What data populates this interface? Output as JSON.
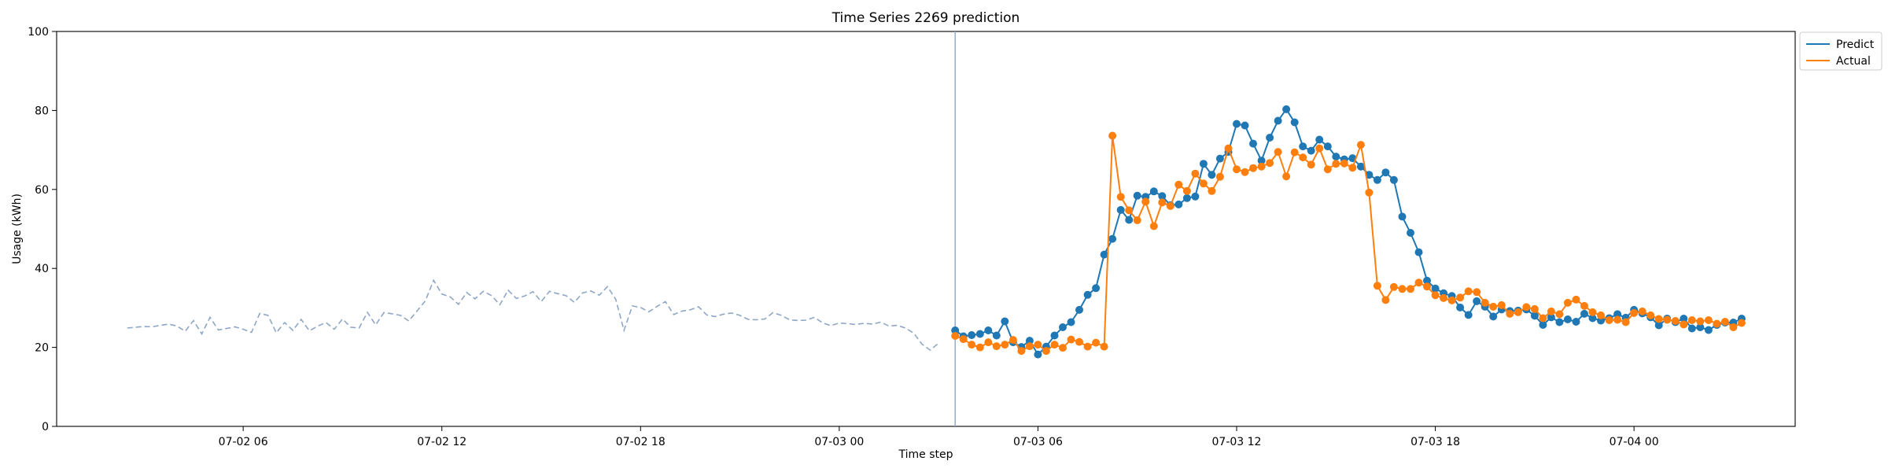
{
  "chart_data": {
    "type": "line",
    "title": "Time Series 2269 prediction",
    "xlabel": "Time step",
    "ylabel": "Usage (kWh)",
    "ylim": [
      0,
      100
    ],
    "yticks": [
      "0",
      "20",
      "40",
      "60",
      "80",
      "100"
    ],
    "xlim": [
      "2024-07-02 00:22",
      "2024-07-04 04:52"
    ],
    "xticks": [
      {
        "label": "07-02 06",
        "x": "2024-07-02 06:00"
      },
      {
        "label": "07-02 12",
        "x": "2024-07-02 12:00"
      },
      {
        "label": "07-02 18",
        "x": "2024-07-02 18:00"
      },
      {
        "label": "07-03 00",
        "x": "2024-07-03 00:00"
      },
      {
        "label": "07-03 06",
        "x": "2024-07-03 06:00"
      },
      {
        "label": "07-03 12",
        "x": "2024-07-03 12:00"
      },
      {
        "label": "07-03 18",
        "x": "2024-07-03 18:00"
      },
      {
        "label": "07-04 00",
        "x": "2024-07-04 00:00"
      }
    ],
    "split_line": "2024-07-03 03:30",
    "legend": {
      "placement": "upper-right-outside"
    },
    "colors": {
      "predict": "#1f77b4",
      "actual": "#ff7f0e",
      "history": "#8fa7c6",
      "split": "#8fa7c6"
    },
    "history": {
      "start": "2024-07-02 02:30",
      "step_minutes": 15,
      "values": [
        24.9,
        25.1,
        25.3,
        25.2,
        25.6,
        25.9,
        25.4,
        24.1,
        26.8,
        23.4,
        27.6,
        24.4,
        24.8,
        25.2,
        24.6,
        23.8,
        28.6,
        28.1,
        23.7,
        26.3,
        24.3,
        27.1,
        24.2,
        25.4,
        26.3,
        24.6,
        27.2,
        25.1,
        24.9,
        28.9,
        25.7,
        28.8,
        28.5,
        28.1,
        26.7,
        29.2,
        31.8,
        37.0,
        33.5,
        32.8,
        30.9,
        33.9,
        32.3,
        34.2,
        33.1,
        30.8,
        34.5,
        32.4,
        33.0,
        34.1,
        31.6,
        34.2,
        33.6,
        33.1,
        31.4,
        33.8,
        34.3,
        33.2,
        35.4,
        32.2,
        24.3,
        30.5,
        30.1,
        29.0,
        30.4,
        31.6,
        28.3,
        29.2,
        29.5,
        30.3,
        28.2,
        27.8,
        28.4,
        28.7,
        28.1,
        27.1,
        27.0,
        27.2,
        28.8,
        28.1,
        27.0,
        26.8,
        26.9,
        27.6,
        26.2,
        25.5,
        26.2,
        26.0,
        25.8,
        26.1,
        25.9,
        26.4,
        25.4,
        25.6,
        24.9,
        23.6,
        20.8,
        19.3,
        21.1
      ]
    },
    "series": [
      {
        "name": "Predict",
        "start": "2024-07-03 03:30",
        "step_minutes": 15,
        "values": [
          24.3,
          22.8,
          23.1,
          23.4,
          24.3,
          23.0,
          26.6,
          21.3,
          20.1,
          21.7,
          18.2,
          20.2,
          23.0,
          25.1,
          26.4,
          29.5,
          33.3,
          35.0,
          43.5,
          47.5,
          54.8,
          52.3,
          58.4,
          58.1,
          59.5,
          58.3,
          56.0,
          56.2,
          57.8,
          58.2,
          66.5,
          63.7,
          67.8,
          69.5,
          76.6,
          76.2,
          71.6,
          67.3,
          73.1,
          77.4,
          80.3,
          77.0,
          70.9,
          69.8,
          72.6,
          70.9,
          68.3,
          67.6,
          67.9,
          65.8,
          63.7,
          62.4,
          64.3,
          62.4,
          53.1,
          49.0,
          44.1,
          36.9,
          34.9,
          33.7,
          33.0,
          30.1,
          28.2,
          31.7,
          30.3,
          27.8,
          29.6,
          29.2,
          29.3,
          29.6,
          28.0,
          25.7,
          27.6,
          26.4,
          27.1,
          26.5,
          28.5,
          27.4,
          26.8,
          27.4,
          28.4,
          27.5,
          29.5,
          28.6,
          27.6,
          25.6,
          27.3,
          26.4,
          27.3,
          24.8,
          25.1,
          24.4,
          25.7,
          26.3,
          26.3,
          27.3
        ]
      },
      {
        "name": "Actual",
        "start": "2024-07-03 03:30",
        "step_minutes": 15,
        "values": [
          22.9,
          22.1,
          20.7,
          20.0,
          21.3,
          20.3,
          20.7,
          21.9,
          19.1,
          20.3,
          20.7,
          19.1,
          20.7,
          19.9,
          22.0,
          21.4,
          20.2,
          21.2,
          20.2,
          73.6,
          58.1,
          54.7,
          52.2,
          56.9,
          50.7,
          56.7,
          55.8,
          61.2,
          59.6,
          64.0,
          61.5,
          59.6,
          63.2,
          70.4,
          65.1,
          64.4,
          65.4,
          65.8,
          66.7,
          69.5,
          63.3,
          69.4,
          68.1,
          66.3,
          70.4,
          65.1,
          66.5,
          66.6,
          65.5,
          71.3,
          59.2,
          35.6,
          32.0,
          35.3,
          34.8,
          34.8,
          36.4,
          35.4,
          33.2,
          32.5,
          31.9,
          32.6,
          34.2,
          34.0,
          31.3,
          30.3,
          30.7,
          28.5,
          28.9,
          30.2,
          29.7,
          27.4,
          29.1,
          28.4,
          31.3,
          32.1,
          30.5,
          28.9,
          28.1,
          26.9,
          27.0,
          26.4,
          28.7,
          29.1,
          28.1,
          27.2,
          27.0,
          26.7,
          25.8,
          26.9,
          26.6,
          26.9,
          26.0,
          26.5,
          25.1,
          26.2
        ]
      }
    ]
  }
}
